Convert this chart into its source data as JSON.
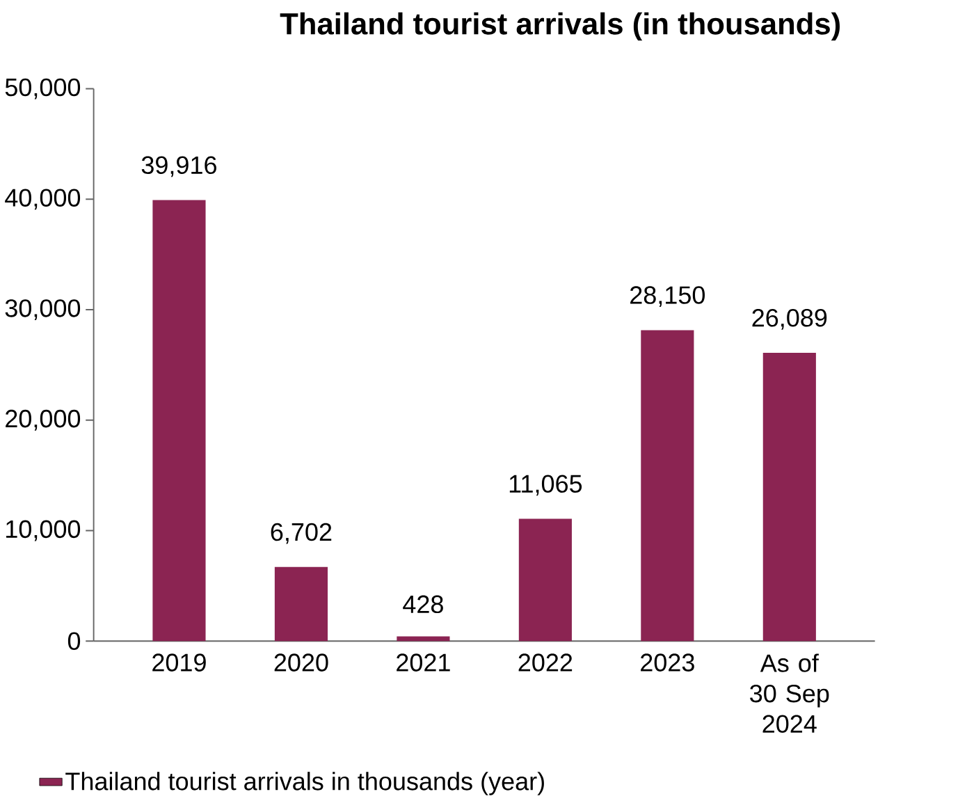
{
  "chart_data": {
    "type": "bar",
    "title": "Thailand tourist arrivals (in thousands)",
    "categories": [
      "2019",
      "2020",
      "2021",
      "2022",
      "2023",
      "As of 30 Sep 2024"
    ],
    "series": [
      {
        "name": "Thailand tourist arrivals in thousands (year)",
        "color": "#8b2452",
        "values": [
          39916,
          6702,
          428,
          11065,
          28150,
          26089
        ],
        "value_labels": [
          "39,916",
          "6,702",
          "428",
          "11,065",
          "28,150",
          "26,089"
        ]
      }
    ],
    "ylim": [
      0,
      50000
    ],
    "yticks": [
      0,
      {
        "value": 10000,
        "label": "10,000"
      },
      {
        "value": 20000,
        "label": "20,000"
      },
      {
        "value": 30000,
        "label": "30,000"
      },
      {
        "value": 40000,
        "label": "40,000"
      },
      {
        "value": 50000,
        "label": "50,000"
      }
    ],
    "grid": false,
    "legend": "bottom left"
  }
}
